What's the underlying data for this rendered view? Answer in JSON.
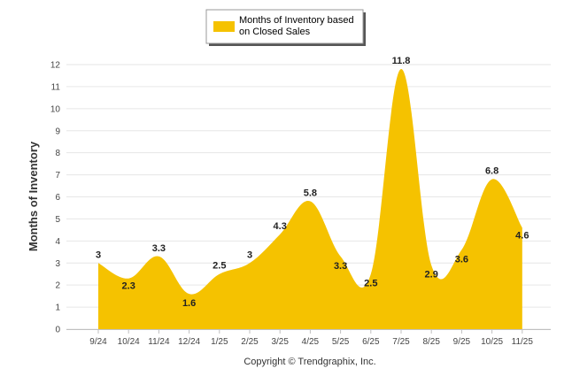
{
  "chart_data": {
    "type": "area",
    "categories": [
      "9/24",
      "10/24",
      "11/24",
      "12/24",
      "1/25",
      "2/25",
      "3/25",
      "4/25",
      "5/25",
      "6/25",
      "7/25",
      "8/25",
      "9/25",
      "10/25",
      "11/25"
    ],
    "series": [
      {
        "name": "Months of Inventory based on Closed Sales",
        "values": [
          3,
          2.3,
          3.3,
          1.6,
          2.5,
          3,
          4.3,
          5.8,
          3.3,
          2.5,
          11.8,
          2.9,
          3.6,
          6.8,
          4.6
        ]
      }
    ],
    "data_labels": [
      "3",
      "2.3",
      "3.3",
      "1.6",
      "2.5",
      "3",
      "4.3",
      "5.8",
      "3.3",
      "2.5",
      "11.8",
      "2.9",
      "3.6",
      "6.8",
      "4.6"
    ],
    "ylabel": "Months of Inventory",
    "xlabel": "",
    "ylim": [
      0,
      12
    ],
    "yticks": [
      0,
      1,
      2,
      3,
      4,
      5,
      6,
      7,
      8,
      9,
      10,
      11,
      12
    ],
    "grid": true,
    "legend_position": "top-center",
    "colors": {
      "fill": "#F5C200",
      "grid": "#E6E6E6",
      "axis": "#C0C0C0"
    }
  },
  "legend": {
    "line1": "Months of Inventory based",
    "line2": "on Closed Sales"
  },
  "footer": {
    "copyright": "Copyright © Trendgraphix, Inc."
  }
}
